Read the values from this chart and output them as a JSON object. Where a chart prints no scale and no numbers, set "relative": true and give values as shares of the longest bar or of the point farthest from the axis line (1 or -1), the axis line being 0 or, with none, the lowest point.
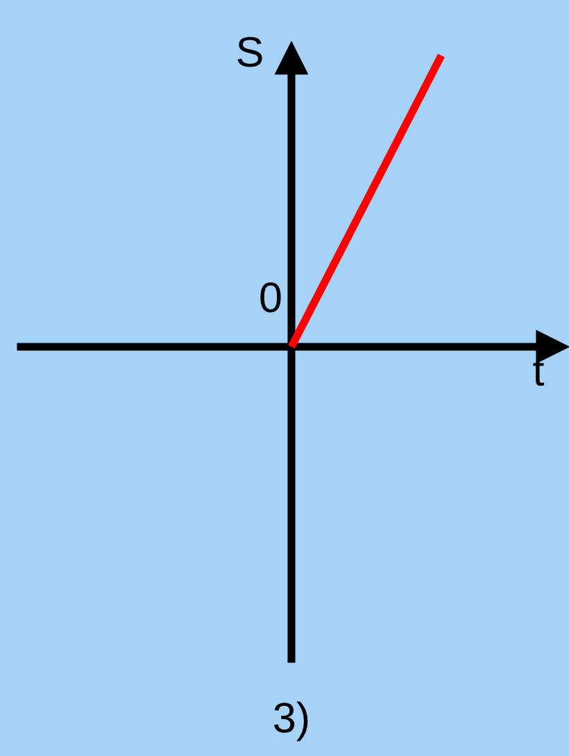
{
  "chart_data": {
    "type": "line",
    "relative": true,
    "title": "3)",
    "xlabel": "t",
    "ylabel": "S",
    "categories": [
      null,
      null
    ],
    "series": [
      {
        "color": "#ff0000",
        "values": [
          0,
          1
        ]
      }
    ],
    "annotations": [
      "0"
    ]
  }
}
